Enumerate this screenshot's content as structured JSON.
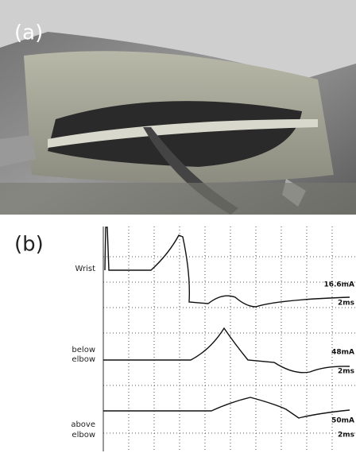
{
  "panel_a": {
    "label": "(a)"
  },
  "panel_b": {
    "label": "(b)",
    "traces": [
      {
        "site": [
          "Wrist"
        ],
        "scale": [
          "16.6mA",
          "2ms"
        ]
      },
      {
        "site": [
          "below",
          "elbow"
        ],
        "scale": [
          "48mA",
          "2ms"
        ]
      },
      {
        "site": [
          "above",
          "elbow"
        ],
        "scale": [
          "50mA",
          "2ms"
        ]
      }
    ]
  }
}
